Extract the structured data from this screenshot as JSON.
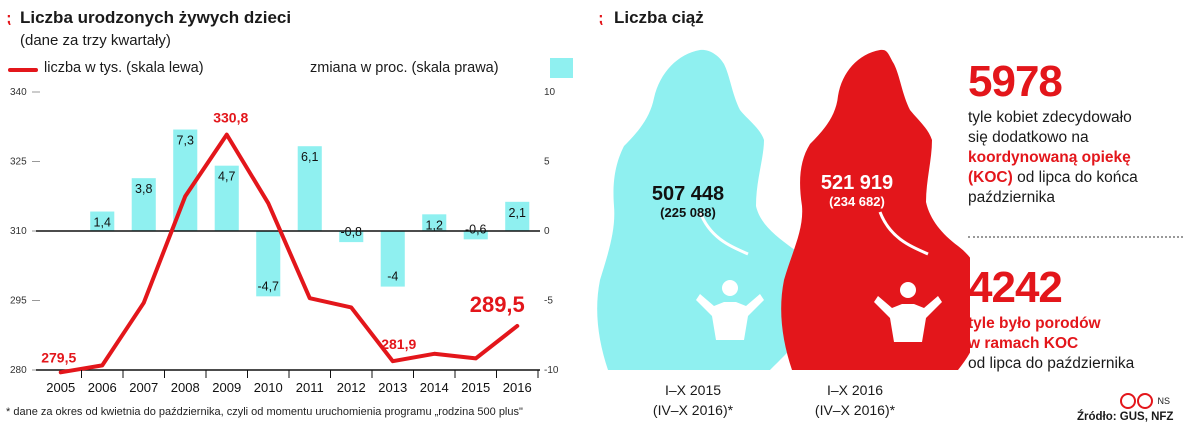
{
  "left": {
    "marker": "⁏",
    "title": "Liczba urodzonych żywych dzieci",
    "subtitle": "(dane za trzy kwartały)",
    "legend_line": "liczba w tys. (skala lewa)",
    "legend_bar": "zmiana w proc. (skala prawa)",
    "footnote": "* dane za okres od kwietnia do października, czyli od momentu uruchomienia programu „rodzina 500 plus\""
  },
  "right": {
    "marker": "⁏",
    "title": "Liczba ciąż",
    "fig2015_value": "507 448",
    "fig2015_sub": "(225 088)",
    "fig2016_value": "521 919",
    "fig2016_sub": "(234 682)",
    "label2015_line1": "I–X 2015",
    "label2015_line2": "(IV–X 2016)*",
    "label2016_line1": "I–X 2016",
    "label2016_line2": "(IV–X 2016)*",
    "stat1_number": "5978",
    "stat1_text_a": "tyle kobiet zdecydowało",
    "stat1_text_b": "się dodatkowo na",
    "stat1_text_c": "koordynowaną opiekę",
    "stat1_text_d": "(KOC)",
    "stat1_text_e": " od lipca do końca",
    "stat1_text_f": "października",
    "stat2_number": "4242",
    "stat2_text_a": "tyle było porodów",
    "stat2_text_b": "w ramach KOC",
    "stat2_text_c": "od lipca do października",
    "credit": "NS",
    "source": "Źródło: GUS, NFZ"
  },
  "colors": {
    "line": "#e3161b",
    "bar": "#8ff0f0",
    "fig2015": "#8ff0f0",
    "fig2016": "#e3161b"
  },
  "chart_data": {
    "type": "bar+line",
    "title": "Liczba urodzonych żywych dzieci",
    "subtitle": "(dane za trzy kwartały)",
    "categories": [
      "2005",
      "2006",
      "2007",
      "2008",
      "2009",
      "2010",
      "2011",
      "2012",
      "2013",
      "2014",
      "2015",
      "2016"
    ],
    "series": [
      {
        "name": "liczba w tys. (skala lewa)",
        "type": "line",
        "axis": "left",
        "values": [
          279.5,
          281.0,
          294.5,
          317.5,
          330.8,
          316.0,
          295.5,
          293.5,
          281.9,
          283.5,
          282.5,
          289.5
        ],
        "labeled": {
          "0": "279,5",
          "4": "330,8",
          "8": "281,9",
          "11": "289,5"
        }
      },
      {
        "name": "zmiana w proc. (skala prawa)",
        "type": "bar",
        "axis": "right",
        "values": [
          null,
          1.4,
          3.8,
          7.3,
          4.7,
          -4.7,
          6.1,
          -0.8,
          -4,
          1.2,
          -0.6,
          2.1
        ],
        "labels": [
          "",
          "1,4",
          "3,8",
          "7,3",
          "4,7",
          "-4,7",
          "6,1",
          "-0,8",
          "-4",
          "1,2",
          "-0,6",
          "2,1"
        ]
      }
    ],
    "left_ticks": [
      "340",
      "325",
      "310",
      "295",
      "280"
    ],
    "right_ticks": [
      "10",
      "5",
      "0",
      "-5",
      "-10"
    ],
    "ylim_left": [
      280,
      340
    ],
    "ylim_right": [
      -10,
      10
    ]
  }
}
